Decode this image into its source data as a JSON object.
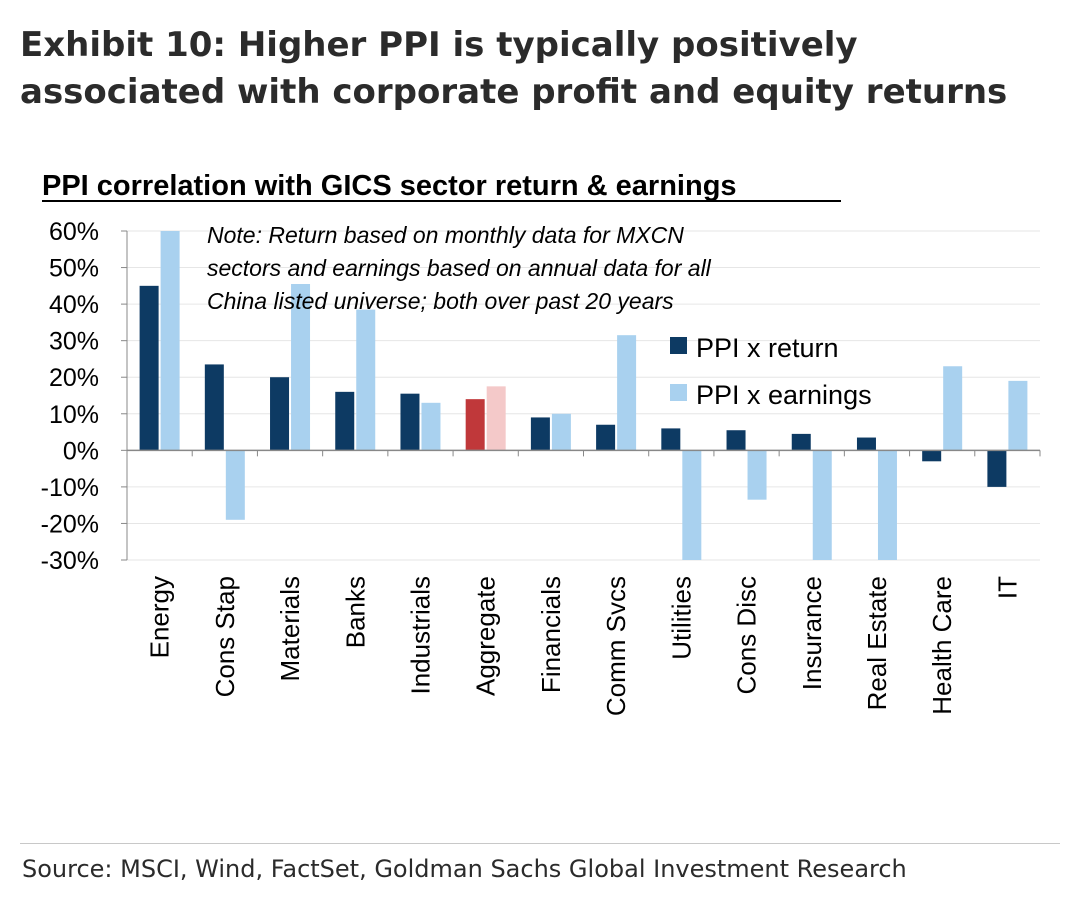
{
  "exhibit": {
    "title": "Exhibit 10: Higher PPI is typically positively associated with corporate profit and equity returns"
  },
  "chart_data": {
    "type": "bar",
    "title": "PPI correlation with GICS sector return & earnings",
    "note": [
      "Note: Return based on monthly data for MXCN",
      "sectors and earnings based on annual data for all",
      "China listed universe; both over past 20 years"
    ],
    "xlabel": "",
    "ylabel": "",
    "ylim": [
      -30,
      60
    ],
    "yticks": [
      60,
      50,
      40,
      30,
      20,
      10,
      0,
      -10,
      -20,
      -30
    ],
    "ytick_labels": [
      "60%",
      "50%",
      "40%",
      "30%",
      "20%",
      "10%",
      "0%",
      "-10%",
      "-20%",
      "-30%"
    ],
    "categories": [
      "Energy",
      "Cons Stap",
      "Materials",
      "Banks",
      "Industrials",
      "Aggregate",
      "Financials",
      "Comm Svcs",
      "Utilities",
      "Cons Disc",
      "Insurance",
      "Real Estate",
      "Health Care",
      "IT"
    ],
    "highlight_category": "Aggregate",
    "series": [
      {
        "name": "PPI x return",
        "color": "#0d3a63",
        "highlight_color": "#c0383a",
        "values": [
          45,
          23.5,
          20,
          16,
          15.5,
          14,
          9,
          7,
          6,
          5.5,
          4.5,
          3.5,
          -3,
          -10
        ]
      },
      {
        "name": "PPI x earnings",
        "color": "#a9d1ef",
        "highlight_color": "#f4c9c9",
        "values": [
          60,
          -19,
          45.5,
          38.5,
          13,
          17.5,
          10,
          31.5,
          -30,
          -13.5,
          -30,
          -30,
          23,
          19
        ]
      }
    ],
    "legend_position": "right"
  },
  "source": "Source: MSCI, Wind, FactSet, Goldman Sachs Global Investment Research"
}
